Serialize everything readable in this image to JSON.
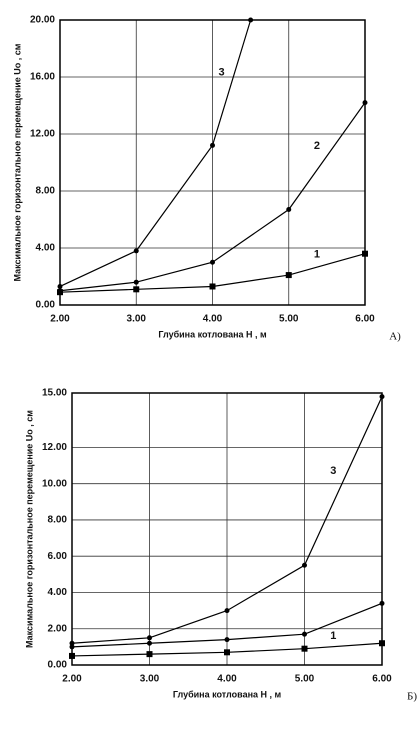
{
  "chart_data": [
    {
      "type": "line",
      "panel_label": "А)",
      "xlabel": "Глубина котлована H , м",
      "ylabel": "Максимальное горизонтальное перемещение Uo , см",
      "xlim": [
        2,
        6
      ],
      "ylim": [
        0,
        20
      ],
      "xticks": [
        {
          "value": 2,
          "label": "2.00"
        },
        {
          "value": 3,
          "label": "3.00"
        },
        {
          "value": 4,
          "label": "4.00"
        },
        {
          "value": 5,
          "label": "5.00"
        },
        {
          "value": 6,
          "label": "6.00"
        }
      ],
      "yticks": [
        {
          "value": 0,
          "label": "0.00"
        },
        {
          "value": 4,
          "label": "4.00"
        },
        {
          "value": 8,
          "label": "8.00"
        },
        {
          "value": 12,
          "label": "12.00"
        },
        {
          "value": 16,
          "label": "16.00"
        },
        {
          "value": 20,
          "label": "20.00"
        }
      ],
      "grid": true,
      "series": [
        {
          "name": "1",
          "color": "#000000",
          "marker": "square",
          "x": [
            2,
            3,
            4,
            5,
            6
          ],
          "values": [
            0.9,
            1.1,
            1.3,
            2.1,
            3.6
          ]
        },
        {
          "name": "2",
          "color": "#000000",
          "marker": "dot",
          "x": [
            2,
            3,
            4,
            5,
            6
          ],
          "values": [
            1.0,
            1.6,
            3.0,
            6.7,
            14.2
          ]
        },
        {
          "name": "3",
          "color": "#000000",
          "marker": "dot",
          "x": [
            2,
            3,
            4,
            4.5
          ],
          "values": [
            1.3,
            3.8,
            11.2,
            20
          ]
        }
      ]
    },
    {
      "type": "line",
      "panel_label": "Б)",
      "xlabel": "Глубина котлована H , м",
      "ylabel": "Максимальное горизонтальное перемещение Uo , см",
      "xlim": [
        2,
        6
      ],
      "ylim": [
        0,
        15
      ],
      "xticks": [
        {
          "value": 2,
          "label": "2.00"
        },
        {
          "value": 3,
          "label": "3.00"
        },
        {
          "value": 4,
          "label": "4.00"
        },
        {
          "value": 5,
          "label": "5.00"
        },
        {
          "value": 6,
          "label": "6.00"
        }
      ],
      "yticks": [
        {
          "value": 0,
          "label": "0.00"
        },
        {
          "value": 2,
          "label": "2.00"
        },
        {
          "value": 4,
          "label": "4.00"
        },
        {
          "value": 6,
          "label": "6.00"
        },
        {
          "value": 8,
          "label": "8.00"
        },
        {
          "value": 10,
          "label": "10.00"
        },
        {
          "value": 12,
          "label": "12.00"
        },
        {
          "value": 15,
          "label": "15.00"
        }
      ],
      "grid": true,
      "series": [
        {
          "name": "1",
          "color": "#000000",
          "marker": "square",
          "x": [
            2,
            3,
            4,
            5,
            6
          ],
          "values": [
            0.5,
            0.6,
            0.7,
            0.9,
            1.2
          ]
        },
        {
          "color": "#000000",
          "marker": "dot",
          "x": [
            2,
            3,
            4,
            5,
            6
          ],
          "values": [
            1.0,
            1.2,
            1.4,
            1.7,
            3.4
          ]
        },
        {
          "name": "3",
          "color": "#000000",
          "marker": "dot",
          "x": [
            2,
            3,
            4,
            5,
            6
          ],
          "values": [
            1.2,
            1.5,
            3.0,
            5.5,
            14.8
          ]
        }
      ]
    }
  ]
}
